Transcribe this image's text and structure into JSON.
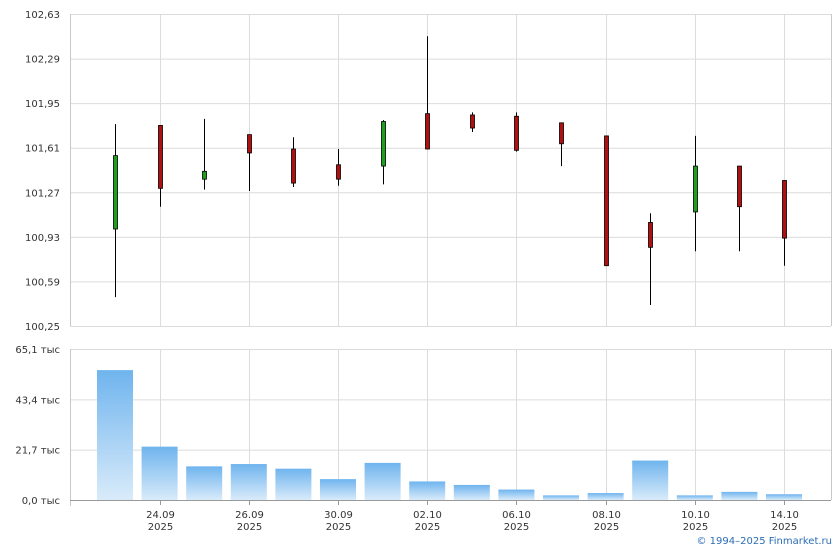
{
  "chart_data": [
    {
      "type": "candlestick",
      "title": "",
      "ylim": [
        100.25,
        102.63
      ],
      "y_ticks": [
        "102,63",
        "102,29",
        "101,95",
        "101,61",
        "101,27",
        "100,93",
        "100,59",
        "100,25"
      ],
      "grid": true,
      "up_color": "#1ea01e",
      "down_color": "#b01010",
      "candles": [
        {
          "date": "2025-09-23",
          "open": 100.99,
          "high": 101.79,
          "low": 100.47,
          "close": 101.55
        },
        {
          "date": "2025-09-24",
          "open": 101.78,
          "high": 101.78,
          "low": 101.16,
          "close": 101.3
        },
        {
          "date": "2025-09-25",
          "open": 101.37,
          "high": 101.83,
          "low": 101.29,
          "close": 101.43
        },
        {
          "date": "2025-09-26",
          "open": 101.71,
          "high": 101.71,
          "low": 101.28,
          "close": 101.57
        },
        {
          "date": "2025-09-29",
          "open": 101.6,
          "high": 101.69,
          "low": 101.31,
          "close": 101.34
        },
        {
          "date": "2025-09-30",
          "open": 101.48,
          "high": 101.6,
          "low": 101.32,
          "close": 101.37
        },
        {
          "date": "2025-10-01",
          "open": 101.47,
          "high": 101.82,
          "low": 101.33,
          "close": 101.81
        },
        {
          "date": "2025-10-02",
          "open": 101.87,
          "high": 102.46,
          "low": 101.6,
          "close": 101.6
        },
        {
          "date": "2025-10-03",
          "open": 101.86,
          "high": 101.88,
          "low": 101.73,
          "close": 101.76
        },
        {
          "date": "2025-10-06",
          "open": 101.85,
          "high": 101.88,
          "low": 101.58,
          "close": 101.59
        },
        {
          "date": "2025-10-07",
          "open": 101.8,
          "high": 101.8,
          "low": 101.47,
          "close": 101.64
        },
        {
          "date": "2025-10-08",
          "open": 101.7,
          "high": 101.7,
          "low": 100.71,
          "close": 100.71
        },
        {
          "date": "2025-10-09",
          "open": 101.04,
          "high": 101.11,
          "low": 100.41,
          "close": 100.85
        },
        {
          "date": "2025-10-10",
          "open": 101.12,
          "high": 101.7,
          "low": 100.82,
          "close": 101.47
        },
        {
          "date": "2025-10-13",
          "open": 101.47,
          "high": 101.47,
          "low": 100.82,
          "close": 101.16
        },
        {
          "date": "2025-10-14",
          "open": 101.36,
          "high": 101.36,
          "low": 100.71,
          "close": 100.92
        }
      ]
    },
    {
      "type": "bar",
      "title": "",
      "ylim": [
        0,
        65.1
      ],
      "y_ticks": [
        "65,1 тыс",
        "43,4 тыс",
        "21,7 тыс",
        "0,0 тыс"
      ],
      "grid": true,
      "bar_color_top": "#6fb4ee",
      "bar_color_bottom": "#d9ebfa",
      "categories": [
        "2025-09-23",
        "2025-09-24",
        "2025-09-25",
        "2025-09-26",
        "2025-09-29",
        "2025-09-30",
        "2025-10-01",
        "2025-10-02",
        "2025-10-03",
        "2025-10-06",
        "2025-10-07",
        "2025-10-08",
        "2025-10-09",
        "2025-10-10",
        "2025-10-13",
        "2025-10-14"
      ],
      "values": [
        56.0,
        23.0,
        14.5,
        15.5,
        13.5,
        9.0,
        16.0,
        8.0,
        6.5,
        4.5,
        2.0,
        3.0,
        17.0,
        2.0,
        3.5,
        2.5
      ]
    }
  ],
  "x_axis_labels": [
    {
      "line1": "24.09",
      "line2": "2025",
      "date": "2025-09-24"
    },
    {
      "line1": "26.09",
      "line2": "2025",
      "date": "2025-09-26"
    },
    {
      "line1": "30.09",
      "line2": "2025",
      "date": "2025-09-30"
    },
    {
      "line1": "02.10",
      "line2": "2025",
      "date": "2025-10-02"
    },
    {
      "line1": "06.10",
      "line2": "2025",
      "date": "2025-10-06"
    },
    {
      "line1": "08.10",
      "line2": "2025",
      "date": "2025-10-08"
    },
    {
      "line1": "10.10",
      "line2": "2025",
      "date": "2025-10-10"
    },
    {
      "line1": "14.10",
      "line2": "2025",
      "date": "2025-10-14"
    }
  ],
  "copyright": "© 1994–2025 Finmarket.ru"
}
